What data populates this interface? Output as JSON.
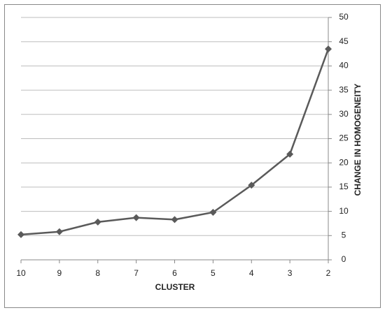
{
  "chart_data": {
    "type": "line",
    "xlabel": "CLUSTER",
    "ylabel": "CHANGE IN HOMOGENEITY",
    "categories": [
      "10",
      "9",
      "8",
      "7",
      "6",
      "5",
      "4",
      "3",
      "2"
    ],
    "values": [
      5.2,
      5.8,
      7.8,
      8.7,
      8.3,
      9.8,
      15.4,
      21.8,
      43.5
    ],
    "color": "#5a5a5a",
    "ylim": [
      0,
      50
    ],
    "yticks": [
      0,
      5,
      10,
      15,
      20,
      25,
      30,
      35,
      40,
      45,
      50
    ],
    "grid": true,
    "y_axis_side": "right"
  }
}
